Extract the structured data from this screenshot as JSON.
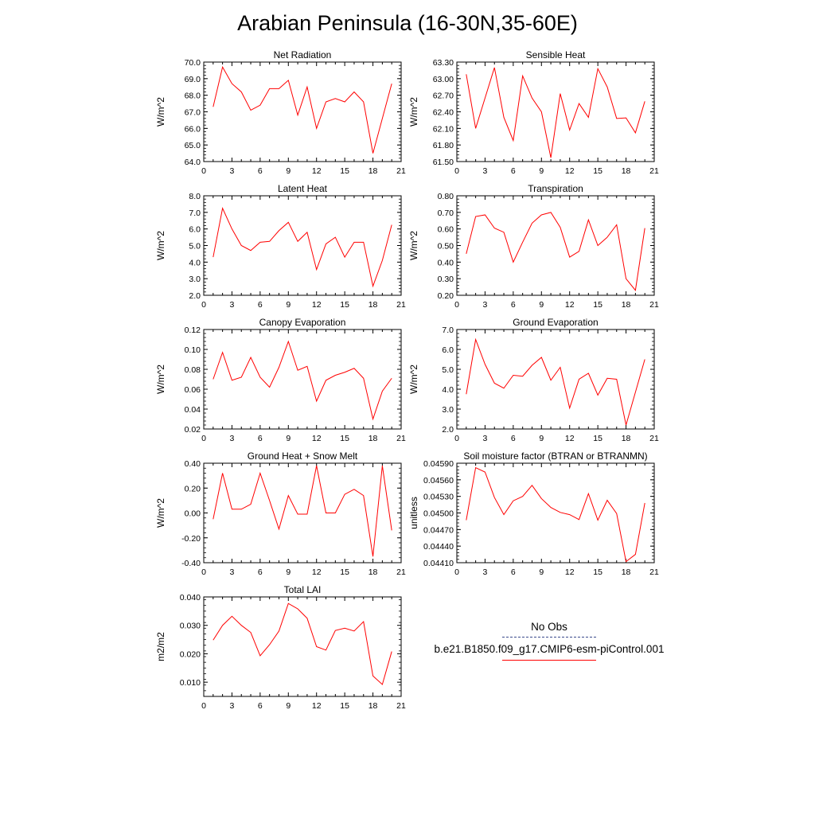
{
  "title": "Arabian Peninsula (16-30N,35-60E)",
  "legend": {
    "obs_label": "No Obs",
    "obs_color": "#3a4a8c",
    "model_label": "b.e21.B1850.f09_g17.CMIP6-esm-piControl.001",
    "model_color": "#ff0000"
  },
  "chart_data": [
    {
      "type": "line",
      "title": "Net Radiation",
      "ylabel": "W/m^2",
      "xlim": [
        0,
        21
      ],
      "xticks": [
        "0",
        "3",
        "6",
        "9",
        "12",
        "15",
        "18",
        "21"
      ],
      "ylim": [
        64.0,
        70.0
      ],
      "yticks": [
        "64.0",
        "65.0",
        "66.0",
        "67.0",
        "68.0",
        "69.0",
        "70.0"
      ],
      "x": [
        1,
        2,
        3,
        4,
        5,
        6,
        7,
        8,
        9,
        10,
        11,
        12,
        13,
        14,
        15,
        16,
        17,
        18,
        19,
        20
      ],
      "series": [
        {
          "color": "#ff0000",
          "values": [
            67.3,
            69.7,
            68.7,
            68.2,
            67.1,
            67.4,
            68.4,
            68.4,
            68.9,
            66.8,
            68.5,
            66.0,
            67.6,
            67.8,
            67.6,
            68.2,
            67.6,
            64.5,
            66.6,
            68.7
          ]
        }
      ]
    },
    {
      "type": "line",
      "title": "Sensible Heat",
      "ylabel": "W/m^2",
      "xlim": [
        0,
        21
      ],
      "xticks": [
        "0",
        "3",
        "6",
        "9",
        "12",
        "15",
        "18",
        "21"
      ],
      "ylim": [
        61.5,
        63.3
      ],
      "yticks": [
        "61.50",
        "61.80",
        "62.10",
        "62.40",
        "62.70",
        "63.00",
        "63.30"
      ],
      "x": [
        1,
        2,
        3,
        4,
        5,
        6,
        7,
        8,
        9,
        10,
        11,
        12,
        13,
        14,
        15,
        16,
        17,
        18,
        19,
        20
      ],
      "series": [
        {
          "color": "#ff0000",
          "values": [
            63.08,
            62.1,
            62.65,
            63.2,
            62.3,
            61.88,
            63.05,
            62.65,
            62.4,
            61.57,
            62.73,
            62.07,
            62.55,
            62.3,
            63.18,
            62.85,
            62.28,
            62.29,
            62.02,
            62.59
          ]
        }
      ]
    },
    {
      "type": "line",
      "title": "Latent Heat",
      "ylabel": "W/m^2",
      "xlim": [
        0,
        21
      ],
      "xticks": [
        "0",
        "3",
        "6",
        "9",
        "12",
        "15",
        "18",
        "21"
      ],
      "ylim": [
        2.0,
        8.0
      ],
      "yticks": [
        "2.0",
        "3.0",
        "4.0",
        "5.0",
        "6.0",
        "7.0",
        "8.0"
      ],
      "x": [
        1,
        2,
        3,
        4,
        5,
        6,
        7,
        8,
        9,
        10,
        11,
        12,
        13,
        14,
        15,
        16,
        17,
        18,
        19,
        20
      ],
      "series": [
        {
          "color": "#ff0000",
          "values": [
            4.3,
            7.25,
            6.0,
            5.0,
            4.7,
            5.2,
            5.25,
            5.9,
            6.4,
            5.25,
            5.8,
            3.55,
            5.1,
            5.5,
            4.3,
            5.2,
            5.2,
            2.55,
            4.1,
            6.25
          ]
        }
      ]
    },
    {
      "type": "line",
      "title": "Transpiration",
      "ylabel": "W/m^2",
      "xlim": [
        0,
        21
      ],
      "xticks": [
        "0",
        "3",
        "6",
        "9",
        "12",
        "15",
        "18",
        "21"
      ],
      "ylim": [
        0.2,
        0.8
      ],
      "yticks": [
        "0.20",
        "0.30",
        "0.40",
        "0.50",
        "0.60",
        "0.70",
        "0.80"
      ],
      "x": [
        1,
        2,
        3,
        4,
        5,
        6,
        7,
        8,
        9,
        10,
        11,
        12,
        13,
        14,
        15,
        16,
        17,
        18,
        19,
        20
      ],
      "series": [
        {
          "color": "#ff0000",
          "values": [
            0.45,
            0.675,
            0.685,
            0.605,
            0.58,
            0.4,
            0.52,
            0.635,
            0.685,
            0.7,
            0.61,
            0.43,
            0.465,
            0.655,
            0.5,
            0.55,
            0.625,
            0.3,
            0.23,
            0.605
          ]
        }
      ]
    },
    {
      "type": "line",
      "title": "Canopy Evaporation",
      "ylabel": "W/m^2",
      "xlim": [
        0,
        21
      ],
      "xticks": [
        "0",
        "3",
        "6",
        "9",
        "12",
        "15",
        "18",
        "21"
      ],
      "ylim": [
        0.02,
        0.12
      ],
      "yticks": [
        "0.02",
        "0.04",
        "0.06",
        "0.08",
        "0.10",
        "0.12"
      ],
      "x": [
        1,
        2,
        3,
        4,
        5,
        6,
        7,
        8,
        9,
        10,
        11,
        12,
        13,
        14,
        15,
        16,
        17,
        18,
        19,
        20
      ],
      "series": [
        {
          "color": "#ff0000",
          "values": [
            0.07,
            0.097,
            0.069,
            0.072,
            0.092,
            0.072,
            0.062,
            0.082,
            0.108,
            0.079,
            0.083,
            0.048,
            0.069,
            0.074,
            0.077,
            0.081,
            0.071,
            0.03,
            0.058,
            0.071
          ]
        }
      ]
    },
    {
      "type": "line",
      "title": "Ground Evaporation",
      "ylabel": "W/m^2",
      "xlim": [
        0,
        21
      ],
      "xticks": [
        "0",
        "3",
        "6",
        "9",
        "12",
        "15",
        "18",
        "21"
      ],
      "ylim": [
        2.0,
        7.0
      ],
      "yticks": [
        "2.0",
        "3.0",
        "4.0",
        "5.0",
        "6.0",
        "7.0"
      ],
      "x": [
        1,
        2,
        3,
        4,
        5,
        6,
        7,
        8,
        9,
        10,
        11,
        12,
        13,
        14,
        15,
        16,
        17,
        18,
        19,
        20
      ],
      "series": [
        {
          "color": "#ff0000",
          "values": [
            3.75,
            6.5,
            5.25,
            4.3,
            4.05,
            4.7,
            4.65,
            5.2,
            5.6,
            4.45,
            5.1,
            3.05,
            4.5,
            4.8,
            3.7,
            4.55,
            4.5,
            2.2,
            3.85,
            5.5
          ]
        }
      ]
    },
    {
      "type": "line",
      "title": "Ground Heat + Snow Melt",
      "ylabel": "W/m^2",
      "xlim": [
        0,
        21
      ],
      "xticks": [
        "0",
        "3",
        "6",
        "9",
        "12",
        "15",
        "18",
        "21"
      ],
      "ylim": [
        -0.4,
        0.4
      ],
      "yticks": [
        "-0.40",
        "-0.20",
        "0.00",
        "0.20",
        "0.40"
      ],
      "x": [
        1,
        2,
        3,
        4,
        5,
        6,
        7,
        8,
        9,
        10,
        11,
        12,
        13,
        14,
        15,
        16,
        17,
        18,
        19,
        20
      ],
      "series": [
        {
          "color": "#ff0000",
          "values": [
            -0.05,
            0.32,
            0.03,
            0.03,
            0.07,
            0.32,
            0.1,
            -0.13,
            0.14,
            -0.01,
            -0.01,
            0.38,
            0.0,
            0.0,
            0.15,
            0.19,
            0.14,
            -0.35,
            0.38,
            -0.14
          ]
        }
      ]
    },
    {
      "type": "line",
      "title": "Soil moisture factor (BTRAN or BTRANMN)",
      "ylabel": "unitless",
      "xlim": [
        0,
        21
      ],
      "xticks": [
        "0",
        "3",
        "6",
        "9",
        "12",
        "15",
        "18",
        "21"
      ],
      "ylim": [
        0.0441,
        0.0459
      ],
      "yticks": [
        "0.04410",
        "0.04440",
        "0.04470",
        "0.04500",
        "0.04530",
        "0.04560",
        "0.04590"
      ],
      "x": [
        1,
        2,
        3,
        4,
        5,
        6,
        7,
        8,
        9,
        10,
        11,
        12,
        13,
        14,
        15,
        16,
        17,
        18,
        19,
        20
      ],
      "series": [
        {
          "color": "#ff0000",
          "values": [
            0.04487,
            0.04582,
            0.04574,
            0.04528,
            0.04497,
            0.04522,
            0.0453,
            0.0455,
            0.04526,
            0.0451,
            0.04501,
            0.04497,
            0.04488,
            0.04535,
            0.04487,
            0.04523,
            0.04499,
            0.04412,
            0.04425,
            0.04518
          ]
        }
      ]
    },
    {
      "type": "line",
      "title": "Total LAI",
      "ylabel": "m2/m2",
      "xlim": [
        0,
        21
      ],
      "xticks": [
        "0",
        "3",
        "6",
        "9",
        "12",
        "15",
        "18",
        "21"
      ],
      "ylim": [
        0.005,
        0.04
      ],
      "yticks": [
        "0.010",
        "0.020",
        "0.030",
        "0.040"
      ],
      "x": [
        1,
        2,
        3,
        4,
        5,
        6,
        7,
        8,
        9,
        10,
        11,
        12,
        13,
        14,
        15,
        16,
        17,
        18,
        19,
        20
      ],
      "series": [
        {
          "color": "#ff0000",
          "values": [
            0.0248,
            0.03,
            0.0332,
            0.03,
            0.0275,
            0.0193,
            0.0232,
            0.028,
            0.0377,
            0.0358,
            0.0325,
            0.0225,
            0.0213,
            0.0282,
            0.029,
            0.028,
            0.0313,
            0.0122,
            0.0092,
            0.0208
          ]
        }
      ]
    }
  ]
}
